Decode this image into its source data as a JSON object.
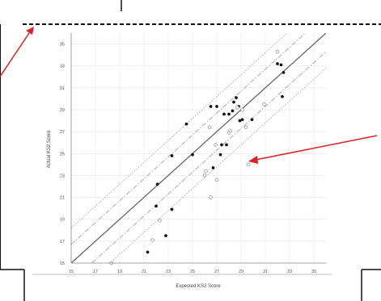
{
  "chart_data": {
    "type": "scatter",
    "title": "",
    "xlabel": "Expected KS2 Score",
    "ylabel": "Actual KS2 Score",
    "xlim": [
      15,
      36
    ],
    "ylim": [
      15,
      36
    ],
    "x_ticks": [
      15,
      17,
      19,
      21,
      23,
      25,
      27,
      29,
      31,
      33,
      35
    ],
    "y_ticks": [
      15,
      17,
      19,
      21,
      23,
      25,
      27,
      29,
      31,
      33,
      35
    ],
    "x_tick_labels": [
      "15",
      "17",
      "19",
      "21",
      "23",
      "25",
      "27",
      "29",
      "31",
      "33",
      "35"
    ],
    "y_tick_labels": [
      "15",
      "17",
      "19",
      "21",
      "23",
      "25",
      "27",
      "29",
      "31",
      "33",
      "35"
    ],
    "grid": true,
    "legend": "none",
    "reference_lines": [
      {
        "style": "solid",
        "offset": 0
      },
      {
        "style": "dash-dot",
        "offset": 1.7
      },
      {
        "style": "dash-dot",
        "offset": -1.7
      },
      {
        "style": "dotted",
        "offset": 3.2
      },
      {
        "style": "dotted",
        "offset": -3.2
      }
    ],
    "series": [
      {
        "marker": "filled-black",
        "color": "#111111",
        "points": [
          [
            21.3,
            16.0
          ],
          [
            22.0,
            20.2
          ],
          [
            22.1,
            22.2
          ],
          [
            22.8,
            17.5
          ],
          [
            23.3,
            19.9
          ],
          [
            23.3,
            24.8
          ],
          [
            24.5,
            27.7
          ],
          [
            25.0,
            24.9
          ],
          [
            26.5,
            29.3
          ],
          [
            26.7,
            23.7
          ],
          [
            27.0,
            29.3
          ],
          [
            27.3,
            24.9
          ],
          [
            27.4,
            25.8
          ],
          [
            27.6,
            28.6
          ],
          [
            27.8,
            25.8
          ],
          [
            28.0,
            28.6
          ],
          [
            28.3,
            28.9
          ],
          [
            28.4,
            29.7
          ],
          [
            28.6,
            30.1
          ],
          [
            28.8,
            29.3
          ],
          [
            28.9,
            28.0
          ],
          [
            29.1,
            28.1
          ],
          [
            29.9,
            28.1
          ],
          [
            32.0,
            33.2
          ],
          [
            32.3,
            33.1
          ],
          [
            32.4,
            30.2
          ],
          [
            32.5,
            32.4
          ]
        ]
      },
      {
        "marker": "open-grey",
        "color": "#999999",
        "points": [
          [
            18.3,
            15.0
          ],
          [
            21.7,
            17.1
          ],
          [
            22.3,
            18.9
          ],
          [
            26.0,
            23.0
          ],
          [
            26.1,
            23.4
          ],
          [
            26.4,
            27.4
          ],
          [
            26.5,
            21.0
          ],
          [
            26.9,
            25.8
          ],
          [
            27.0,
            22.6
          ],
          [
            28.0,
            26.9
          ],
          [
            28.1,
            27.1
          ],
          [
            28.7,
            29.2
          ],
          [
            29.1,
            29.0
          ],
          [
            29.4,
            27.4
          ],
          [
            29.6,
            24.0
          ],
          [
            30.9,
            29.5
          ],
          [
            32.0,
            34.3
          ]
        ]
      }
    ]
  },
  "colors": {
    "annotation_arrow": "#e02020",
    "frame_border": "#111111",
    "grid": "#e6e6e6",
    "axis": "#888888"
  }
}
